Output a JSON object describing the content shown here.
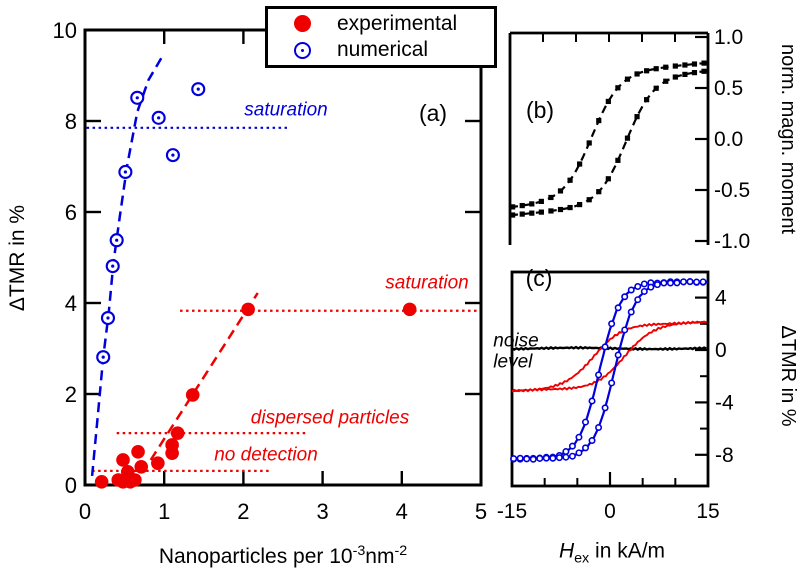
{
  "figure": {
    "bg": "#ffffff",
    "colors": {
      "red": "#ee0000",
      "blue": "#0000dd",
      "black": "#000000"
    }
  },
  "legend": {
    "items": [
      {
        "label": "experimental",
        "marker": "filled-circle",
        "color": "#ee0000"
      },
      {
        "label": "numerical",
        "marker": "open-circle",
        "color": "#0000dd"
      }
    ]
  },
  "labels": {
    "ylabel_a": "ΔTMR in %",
    "xlabel_a_main": "Nanoparticles per 10",
    "xlabel_a_sup1": "-3",
    "xlabel_a_mid": "nm",
    "xlabel_a_sup2": "-2",
    "tag_a": "(a)",
    "tag_b": "(b)",
    "tag_c": "(c)",
    "saturation_blue": "saturation",
    "saturation_red": "saturation",
    "dispersed": "dispersed particles",
    "no_detection": "no detection",
    "noise_level": "noise\nlevel",
    "ylabel_b": "norm. magn. moment",
    "ylabel_c": "ΔTMR in %",
    "xlabel_c_h": "H",
    "xlabel_c_sub": "ex",
    "xlabel_c_rest": " in kA/m"
  },
  "chart_data": [
    {
      "id": "a",
      "type": "scatter",
      "title": "(a)",
      "xlabel": "Nanoparticles per 10^-3 nm^-2",
      "ylabel": "ΔTMR in %",
      "xlim": [
        0,
        5
      ],
      "ylim": [
        0,
        10
      ],
      "x_ticks": [
        {
          "v": 0,
          "label": "0"
        },
        {
          "v": 1,
          "label": "1"
        },
        {
          "v": 2,
          "label": "2"
        },
        {
          "v": 3,
          "label": "3"
        },
        {
          "v": 4,
          "label": "4"
        },
        {
          "v": 5,
          "label": "5"
        }
      ],
      "y_ticks": [
        {
          "v": 0,
          "label": "0"
        },
        {
          "v": 2,
          "label": "2"
        },
        {
          "v": 4,
          "label": "4"
        },
        {
          "v": 6,
          "label": "6"
        },
        {
          "v": 8,
          "label": "8"
        },
        {
          "v": 10,
          "label": "10"
        }
      ],
      "series": [
        {
          "name": "experimental",
          "marker": "filled-circle",
          "color": "#ee0000",
          "points": [
            [
              0.21,
              0.07
            ],
            [
              0.42,
              0.11
            ],
            [
              0.48,
              0.07
            ],
            [
              0.57,
              0.07
            ],
            [
              0.63,
              0.11
            ],
            [
              0.48,
              0.55
            ],
            [
              0.54,
              0.29
            ],
            [
              0.67,
              0.73
            ],
            [
              0.71,
              0.4
            ],
            [
              0.92,
              0.48
            ],
            [
              1.1,
              0.7
            ],
            [
              1.1,
              0.88
            ],
            [
              1.17,
              1.14
            ],
            [
              1.36,
              1.98
            ],
            [
              2.06,
              3.86
            ],
            [
              4.1,
              3.86
            ]
          ]
        },
        {
          "name": "numerical",
          "marker": "open-circle",
          "color": "#0000dd",
          "points": [
            [
              0.23,
              2.81
            ],
            [
              0.29,
              3.67
            ],
            [
              0.35,
              4.81
            ],
            [
              0.4,
              5.38
            ],
            [
              0.51,
              6.88
            ],
            [
              0.66,
              8.51
            ],
            [
              0.93,
              8.07
            ],
            [
              1.11,
              7.25
            ],
            [
              1.43,
              8.7
            ]
          ]
        }
      ],
      "trend_lines": [
        {
          "name": "numerical-fit",
          "color": "#0000dd",
          "style": "dashed",
          "points": [
            [
              0.09,
              0.2
            ],
            [
              0.16,
              1.5
            ],
            [
              0.23,
              2.8
            ],
            [
              0.3,
              3.8
            ],
            [
              0.36,
              4.9
            ],
            [
              0.44,
              5.9
            ],
            [
              0.53,
              7.0
            ],
            [
              0.66,
              8.2
            ],
            [
              0.8,
              8.9
            ],
            [
              0.97,
              9.4
            ]
          ]
        },
        {
          "name": "experimental-fit",
          "color": "#ee0000",
          "style": "dashed",
          "points": [
            [
              0.83,
              0.55
            ],
            [
              2.18,
              4.22
            ]
          ]
        }
      ],
      "reference_lines": [
        {
          "label": "saturation (numerical)",
          "color": "#0000dd",
          "y": 7.85,
          "x_from": 0.02,
          "x_to": 2.55
        },
        {
          "label": "saturation (experimental)",
          "color": "#ee0000",
          "y": 3.83,
          "x_from": 1.2,
          "x_to": 4.95
        },
        {
          "label": "dispersed particles",
          "color": "#ee0000",
          "y": 1.14,
          "x_from": 0.4,
          "x_to": 2.82
        },
        {
          "label": "no detection",
          "color": "#ee0000",
          "y": 0.31,
          "x_from": 0.09,
          "x_to": 2.36
        }
      ]
    },
    {
      "id": "b",
      "type": "line",
      "title": "(b)",
      "ylabel_right": "norm. magn. moment",
      "xlim": [
        -15,
        15
      ],
      "ylim": [
        -1.08,
        1.04
      ],
      "x_minor_ticks": [
        -10,
        -5,
        0,
        5,
        10
      ],
      "y_ticks": [
        {
          "v": 1.0,
          "label": "1.0"
        },
        {
          "v": 0.5,
          "label": "0.5"
        },
        {
          "v": 0.0,
          "label": "0.0"
        },
        {
          "v": -0.5,
          "label": "-0.5"
        },
        {
          "v": -1.0,
          "label": "-1.0"
        }
      ],
      "series": [
        {
          "name": "magnetization-descending-branch",
          "color": "#000000",
          "model": {
            "amp": 0.62,
            "off": 0.038,
            "lin": 0.006,
            "center": -2.6,
            "width": 4.2
          }
        },
        {
          "name": "magnetization-ascending-branch",
          "color": "#000000",
          "model": {
            "amp": 0.62,
            "off": -0.038,
            "lin": 0.006,
            "center": 2.6,
            "width": 4.2
          }
        }
      ]
    },
    {
      "id": "c",
      "type": "line",
      "title": "(c)",
      "xlabel": "H_ex in kA/m",
      "ylabel_right": "ΔTMR in %",
      "xlim": [
        -15,
        15
      ],
      "ylim": [
        -10.4,
        5.95
      ],
      "x_ticks": [
        {
          "v": -15,
          "label": "-15"
        },
        {
          "v": 0,
          "label": "0"
        },
        {
          "v": 15,
          "label": "15"
        }
      ],
      "x_minor_ticks": [
        -10,
        -5,
        5,
        10
      ],
      "y_ticks": [
        {
          "v": 4,
          "label": "4"
        },
        {
          "v": 0,
          "label": "0"
        },
        {
          "v": -4,
          "label": "-4"
        },
        {
          "v": -8,
          "label": "-8"
        }
      ],
      "y_minor_ticks": [
        2,
        -2,
        -6
      ],
      "series": [
        {
          "name": "noise-level",
          "color": "#000000",
          "flat": 0.12,
          "jitter": 0.1
        },
        {
          "name": "tmr-loop-low-coverage",
          "color": "#ee0000",
          "jitter": 0.13,
          "model": {
            "amp": 2.6,
            "off": -0.5,
            "centers": [
              -2.4,
              2.1
            ],
            "width": 4.5
          }
        },
        {
          "name": "tmr-loop-high-coverage",
          "color": "#0000dd",
          "jitter": 0.05,
          "marker": "open-dot",
          "model": {
            "amp": 6.75,
            "off": -1.55,
            "centers": [
              -1.6,
              0.7
            ],
            "width": 3.2
          }
        }
      ],
      "annotation": "noise level"
    }
  ]
}
